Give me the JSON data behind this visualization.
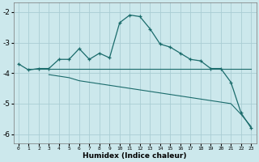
{
  "xlabel": "Humidex (Indice chaleur)",
  "ylabel": "",
  "xlim": [
    -0.5,
    23.5
  ],
  "ylim": [
    -6.3,
    -1.7
  ],
  "yticks": [
    -6,
    -5,
    -4,
    -3,
    -2
  ],
  "xticks": [
    0,
    1,
    2,
    3,
    4,
    5,
    6,
    7,
    8,
    9,
    10,
    11,
    12,
    13,
    14,
    15,
    16,
    17,
    18,
    19,
    20,
    21,
    22,
    23
  ],
  "bg_color": "#cce8ec",
  "grid_color": "#aacdd4",
  "line_color": "#1a6b6b",
  "line1_x": [
    0,
    1,
    2,
    3,
    4,
    5,
    6,
    7,
    8,
    9,
    10,
    11,
    12,
    13,
    14,
    15,
    16,
    17,
    18,
    19,
    20,
    21,
    22,
    23
  ],
  "line1_y": [
    -3.7,
    -3.9,
    -3.85,
    -3.85,
    -3.55,
    -3.55,
    -3.2,
    -3.55,
    -3.35,
    -3.5,
    -2.35,
    -2.1,
    -2.15,
    -2.55,
    -3.05,
    -3.15,
    -3.35,
    -3.55,
    -3.6,
    -3.85,
    -3.85,
    -4.3,
    -5.3,
    -5.8
  ],
  "line2_x": [
    1,
    2,
    3,
    4,
    5,
    6,
    7,
    8,
    9,
    10,
    11,
    12,
    13,
    14,
    15,
    16,
    17,
    18,
    19,
    20,
    21,
    22,
    23
  ],
  "line2_y": [
    -3.85,
    -3.85,
    -3.85,
    -3.85,
    -3.85,
    -3.85,
    -3.85,
    -3.85,
    -3.85,
    -3.85,
    -3.85,
    -3.85,
    -3.85,
    -3.85,
    -3.85,
    -3.85,
    -3.85,
    -3.85,
    -3.85,
    -3.85,
    -3.85,
    -3.85,
    -3.85
  ],
  "line3_x": [
    3,
    4,
    5,
    6,
    7,
    8,
    9,
    10,
    11,
    12,
    13,
    14,
    15,
    16,
    17,
    18,
    19,
    20,
    21,
    22,
    23
  ],
  "line3_y": [
    -4.05,
    -4.1,
    -4.15,
    -4.25,
    -4.3,
    -4.35,
    -4.4,
    -4.45,
    -4.5,
    -4.55,
    -4.6,
    -4.65,
    -4.7,
    -4.75,
    -4.8,
    -4.85,
    -4.9,
    -4.95,
    -5.0,
    -5.35,
    -5.75
  ]
}
